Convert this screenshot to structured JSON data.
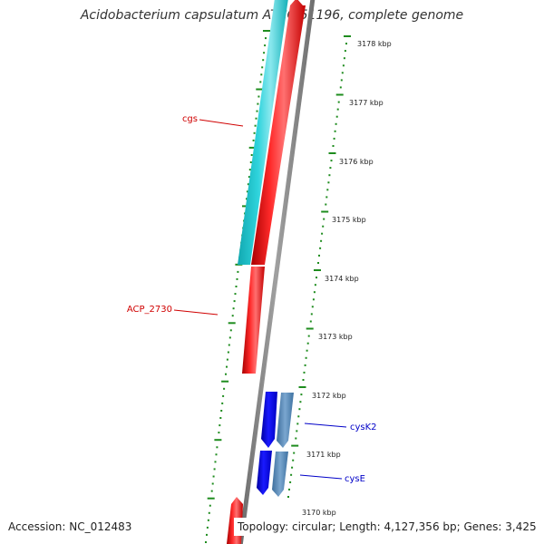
{
  "title": "Acidobacterium capsulatum ATCC 51196, complete genome",
  "accession_text": "Accession: NC_012483",
  "summary_text": "Topology: circular; Length: 4,127,356 bp; Genes: 3,425",
  "colors": {
    "backbone": "#8a8a8a",
    "scale_ticks": "#1e8c1e",
    "forward_gene": "#ff1a1a",
    "cgs_gene": "#22c8d2",
    "reverse_gene": "#1010e6",
    "reverse_gene_alt": "#4f86b8",
    "forward_label": "#d00000",
    "reverse_label": "#0000c8"
  },
  "scale_labels": [
    {
      "text": "3178 kbp",
      "kbp": 3178
    },
    {
      "text": "3177 kbp",
      "kbp": 3177
    },
    {
      "text": "3176 kbp",
      "kbp": 3176
    },
    {
      "text": "3175 kbp",
      "kbp": 3175
    },
    {
      "text": "3174 kbp",
      "kbp": 3174
    },
    {
      "text": "3173 kbp",
      "kbp": 3173
    },
    {
      "text": "3172 kbp",
      "kbp": 3172
    },
    {
      "text": "3171 kbp",
      "kbp": 3171
    },
    {
      "text": "3170 kbp",
      "kbp": 3170
    }
  ],
  "gene_labels": [
    {
      "id": "cgs",
      "text": "cgs",
      "strand": "forward"
    },
    {
      "id": "acp2730",
      "text": "ACP_2730",
      "strand": "forward"
    },
    {
      "id": "cysk2",
      "text": "cysK2",
      "strand": "reverse"
    },
    {
      "id": "cyse",
      "text": "cysE",
      "strand": "reverse"
    }
  ]
}
